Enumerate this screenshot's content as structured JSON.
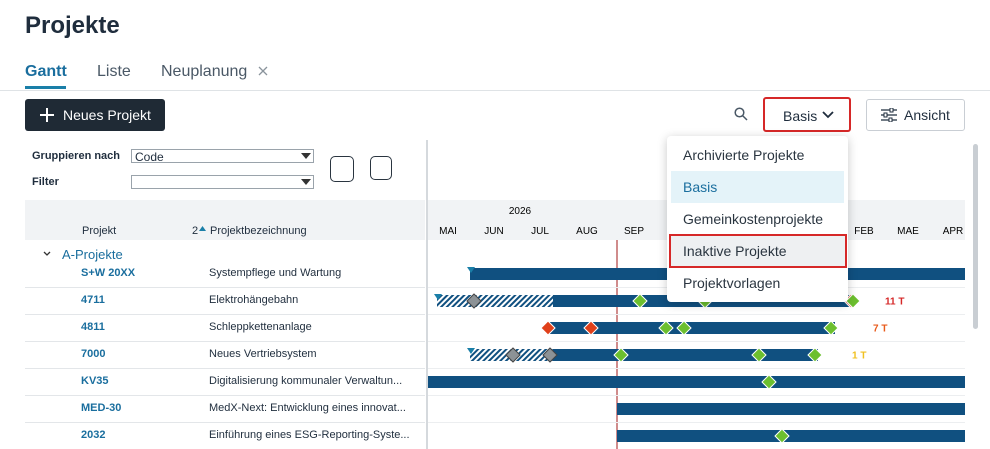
{
  "header": {
    "title": "Projekte"
  },
  "tabs": [
    "Gantt",
    "Liste",
    "Neuplanung"
  ],
  "toolbar": {
    "new_project": "Neues Projekt",
    "view_dropdown": "Basis",
    "view_button": "Ansicht"
  },
  "menu": {
    "items": [
      "Archivierte Projekte",
      "Basis",
      "Gemeinkostenprojekte",
      "Inaktive Projekte",
      "Projektvorlagen"
    ]
  },
  "filters": {
    "group_label": "Gruppieren nach",
    "group_value": "Code",
    "filter_label": "Filter"
  },
  "table": {
    "columns": [
      "Projekt",
      "Projektbezeichnung"
    ],
    "sort_order": "2",
    "group": "A-Projekte",
    "rows": [
      [
        "S+W 20XX",
        "Systempflege und Wartung"
      ],
      [
        "4711",
        "Elektrohängebahn"
      ],
      [
        "4811",
        "Schleppkettenanlage"
      ],
      [
        "7000",
        "Neues Vertriebsystem"
      ],
      [
        "KV35",
        "Digitalisierung kommunaler Verwaltun..."
      ],
      [
        "MED-30",
        "MedX-Next: Entwicklung eines innovat..."
      ],
      [
        "2032",
        "Einführung eines ESG-Reporting-Syste..."
      ]
    ]
  },
  "timeline": {
    "year": "2026",
    "months": [
      "MAI",
      "JUN",
      "JUL",
      "AUG",
      "SEP",
      "FEB",
      "MAE",
      "APR"
    ],
    "delays": [
      "11 T",
      "7 T",
      "1 T"
    ]
  }
}
